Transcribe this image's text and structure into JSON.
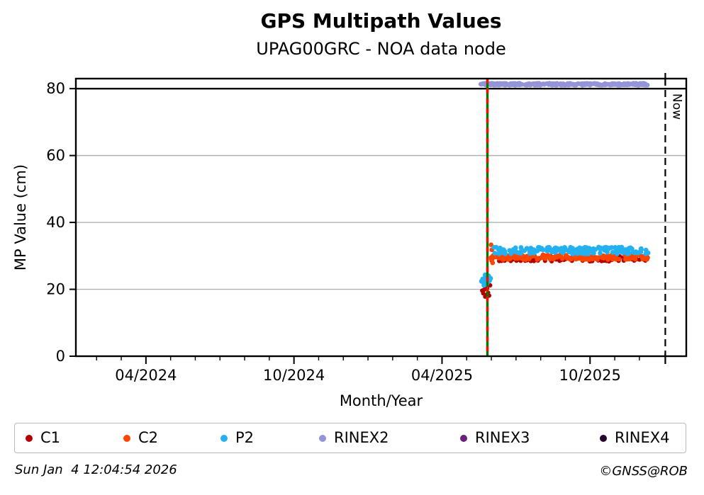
{
  "header": {
    "title": "GPS Multipath Values",
    "subtitle": "UPAG00GRC - NOA data node"
  },
  "footer": {
    "timestamp": "Sun Jan  4 12:04:54 2026",
    "copyright": "©GNSS@ROB"
  },
  "chart_data": {
    "type": "scatter",
    "title": "GPS Multipath Values",
    "subtitle": "UPAG00GRC - NOA data node",
    "xlabel": "Month/Year",
    "ylabel": "MP Value (cm)",
    "ylim": [
      0,
      83
    ],
    "yticks": [
      0,
      20,
      40,
      60,
      80
    ],
    "grid": true,
    "grid_color": "#b0b0b0",
    "cap_line_value": 80,
    "cap_line_color": "#000000",
    "x_unit": "months since 2024-01 (0 = Jan 2024)",
    "xlim_months": [
      0.16,
      24.9
    ],
    "xticks_major": [
      {
        "m": 3,
        "label": "04/2024"
      },
      {
        "m": 9,
        "label": "10/2024"
      },
      {
        "m": 15,
        "label": "04/2025"
      },
      {
        "m": 21,
        "label": "10/2025"
      }
    ],
    "xticks_minor_months": [
      1,
      2,
      4,
      5,
      6,
      7,
      8,
      10,
      11,
      12,
      13,
      14,
      16,
      17,
      18,
      19,
      20,
      22,
      23
    ],
    "event_line": {
      "m": 16.84,
      "approx_date": "2025-05-25",
      "solid_color": "#007800",
      "dash_color": "#ee1100"
    },
    "now_line": {
      "m": 24.05,
      "label": "Now",
      "date_shown_in_footer": "2026-01-04",
      "color": "#000000"
    },
    "series": [
      {
        "name": "C1",
        "color": "#b00000",
        "marker_r": 3.1,
        "seed": 11,
        "segments": [
          {
            "m0": 17.0,
            "m1": 23.35,
            "mean": 29.2,
            "spread": 0.85,
            "count": 150
          }
        ],
        "points": [
          [
            16.63,
            19.6
          ],
          [
            16.67,
            18.8
          ],
          [
            16.71,
            19.9
          ],
          [
            16.75,
            17.8
          ],
          [
            16.79,
            18.3
          ],
          [
            16.83,
            20.3
          ],
          [
            16.87,
            19.0
          ],
          [
            16.91,
            18.1
          ],
          [
            16.95,
            21.2
          ],
          [
            16.78,
            20.9
          ]
        ]
      },
      {
        "name": "C2",
        "color": "#ff4500",
        "marker_r": 3.3,
        "seed": 22,
        "segments": [
          {
            "m0": 16.98,
            "m1": 23.35,
            "mean": 29.6,
            "spread": 0.75,
            "count": 170
          }
        ],
        "points": [
          [
            16.99,
            33.3
          ],
          [
            17.02,
            31.8
          ],
          [
            17.05,
            27.9
          ]
        ]
      },
      {
        "name": "P2",
        "color": "#25b0f0",
        "marker_r": 3.4,
        "seed": 33,
        "segments": [
          {
            "m0": 17.0,
            "m1": 23.35,
            "mean": 31.6,
            "spread": 1.0,
            "count": 170
          }
        ],
        "points": [
          [
            16.6,
            22.4
          ],
          [
            16.65,
            23.1
          ],
          [
            16.69,
            21.9
          ],
          [
            16.73,
            22.8
          ],
          [
            16.77,
            23.7
          ],
          [
            16.81,
            21.5
          ],
          [
            16.85,
            22.1
          ],
          [
            16.89,
            24.0
          ],
          [
            16.93,
            22.6
          ],
          [
            16.97,
            23.3
          ],
          [
            16.75,
            24.3
          ],
          [
            16.7,
            21.2
          ]
        ]
      },
      {
        "name": "RINEX2",
        "color": "#9494d8",
        "marker_r": 3.4,
        "seed": 44,
        "segments": [
          {
            "m0": 16.55,
            "m1": 23.35,
            "mean": 81.3,
            "spread": 0.28,
            "count": 290
          }
        ],
        "points": []
      },
      {
        "name": "RINEX3",
        "color": "#6a1f7a",
        "marker_r": 3.3,
        "seed": 55,
        "segments": [],
        "points": []
      },
      {
        "name": "RINEX4",
        "color": "#26062e",
        "marker_r": 3.3,
        "seed": 66,
        "segments": [],
        "points": []
      }
    ],
    "legend": {
      "position": "bottom",
      "labels": [
        "C1",
        "C2",
        "P2",
        "RINEX2",
        "RINEX3",
        "RINEX4"
      ]
    }
  }
}
